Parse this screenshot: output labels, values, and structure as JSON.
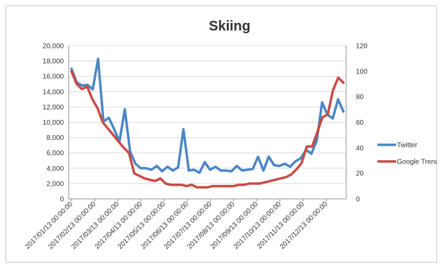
{
  "chart_data": {
    "type": "line",
    "title": "Skiing",
    "xlabel": "",
    "grid": true,
    "legend_placement": "right",
    "x_tick_labels": [
      "2017/01/13 00:00:00",
      "2017/02/13 00:00:00",
      "2017/03/13 00:00:00",
      "2017/04/13 00:00:00",
      "2017/05/13 00:00:00",
      "2017/06/13 00:00:00",
      "2017/07/13 00:00:00",
      "2017/08/13 00:00:00",
      "2017/09/13 00:00:00",
      "2017/10/13 00:00:00",
      "2017/11/13 00:00:00",
      "2017/12/13 00:00:00"
    ],
    "y_left": {
      "label": "",
      "ylim": [
        0,
        20000
      ],
      "ticks": [
        "0",
        "2,000",
        "4,000",
        "6,000",
        "8,000",
        "10,000",
        "12,000",
        "14,000",
        "16,000",
        "18,000",
        "20,000"
      ]
    },
    "y_right": {
      "label": "",
      "ylim": [
        0,
        120
      ],
      "ticks": [
        "0",
        "20",
        "40",
        "60",
        "80",
        "100",
        "120"
      ]
    },
    "series": [
      {
        "name": "Twitter",
        "axis": "left",
        "color": "#4a86c5",
        "values": [
          17000,
          15200,
          14800,
          14900,
          14300,
          18300,
          10100,
          10600,
          9100,
          7500,
          11700,
          6200,
          4600,
          4000,
          4000,
          3800,
          4300,
          3600,
          4200,
          3700,
          4100,
          9100,
          3700,
          3800,
          3400,
          4800,
          3800,
          4200,
          3700,
          3700,
          3600,
          4300,
          3700,
          3800,
          3900,
          5500,
          3700,
          5500,
          4400,
          4300,
          4600,
          4200,
          4900,
          5300,
          6400,
          5900,
          7600,
          12600,
          11000,
          10500,
          13000,
          11400
        ]
      },
      {
        "name": "Google Trends",
        "axis": "right",
        "color": "#c94a45",
        "values": [
          100,
          90,
          86,
          88,
          78,
          71,
          60,
          55,
          50,
          45,
          40,
          36,
          20,
          18,
          16,
          15,
          14,
          16,
          12,
          11,
          11,
          11,
          10,
          11,
          9,
          9,
          9,
          10,
          10,
          10,
          10,
          10,
          11,
          11,
          12,
          12,
          12,
          13,
          14,
          15,
          16,
          17,
          19,
          23,
          28,
          41,
          41,
          52,
          64,
          66,
          85,
          95,
          91
        ]
      }
    ]
  }
}
